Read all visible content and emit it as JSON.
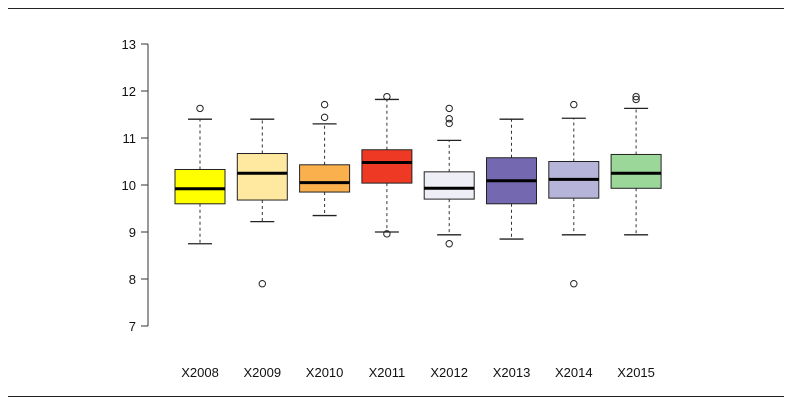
{
  "chart_data": {
    "type": "boxplot",
    "title": "",
    "xlabel": "",
    "ylabel": "",
    "ylim": [
      7,
      13
    ],
    "yticks": [
      7,
      8,
      9,
      10,
      11,
      12,
      13
    ],
    "grid": false,
    "legend": "none",
    "categories": [
      "X2008",
      "X2009",
      "X2010",
      "X2011",
      "X2012",
      "X2013",
      "X2014",
      "X2015"
    ],
    "boxes": [
      {
        "category": "X2008",
        "color": "#ffff00",
        "whisker_low": 8.75,
        "q1": 9.6,
        "median": 9.92,
        "q3": 10.33,
        "whisker_high": 11.4,
        "outliers": [
          11.63
        ]
      },
      {
        "category": "X2009",
        "color": "#ffe8a0",
        "whisker_low": 9.22,
        "q1": 9.68,
        "median": 10.25,
        "q3": 10.67,
        "whisker_high": 11.4,
        "outliers": [
          7.9
        ]
      },
      {
        "category": "X2010",
        "color": "#fbb04e",
        "whisker_low": 9.35,
        "q1": 9.85,
        "median": 10.05,
        "q3": 10.43,
        "whisker_high": 11.3,
        "outliers": [
          11.44,
          11.71
        ]
      },
      {
        "category": "X2011",
        "color": "#ee3a24",
        "whisker_low": 9.0,
        "q1": 10.04,
        "median": 10.48,
        "q3": 10.75,
        "whisker_high": 11.82,
        "outliers": [
          8.96,
          11.88
        ]
      },
      {
        "category": "X2012",
        "color": "#eeeef7",
        "whisker_low": 8.94,
        "q1": 9.7,
        "median": 9.93,
        "q3": 10.28,
        "whisker_high": 10.95,
        "outliers": [
          8.75,
          11.31,
          11.41,
          11.63
        ]
      },
      {
        "category": "X2013",
        "color": "#7468b0",
        "whisker_low": 8.85,
        "q1": 9.6,
        "median": 10.09,
        "q3": 10.58,
        "whisker_high": 11.4,
        "outliers": []
      },
      {
        "category": "X2014",
        "color": "#b6b4d8",
        "whisker_low": 8.94,
        "q1": 9.72,
        "median": 10.12,
        "q3": 10.5,
        "whisker_high": 11.42,
        "outliers": [
          7.9,
          11.71
        ]
      },
      {
        "category": "X2015",
        "color": "#9cd79a",
        "whisker_low": 8.94,
        "q1": 9.93,
        "median": 10.25,
        "q3": 10.65,
        "whisker_high": 11.63,
        "outliers": [
          11.82,
          11.88
        ]
      }
    ]
  }
}
